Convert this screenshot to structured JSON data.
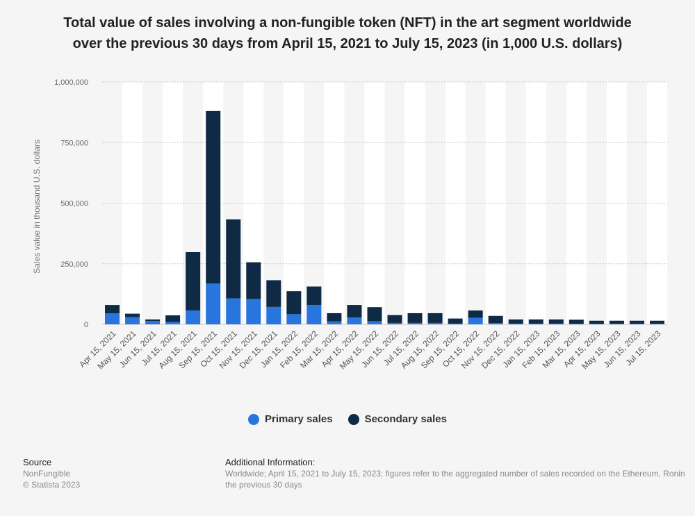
{
  "title_line1": "Total value of sales involving a non-fungible token (NFT) in the art segment worldwide",
  "title_line2": "over the previous 30 days from April 15, 2021 to July 15, 2023 (in 1,000 U.S. dollars)",
  "legend": {
    "primary_label": "Primary sales",
    "secondary_label": "Secondary sales"
  },
  "colors": {
    "primary": "#2876dd",
    "secondary": "#0f2a44",
    "band": "#ffffff",
    "grid": "#c8c8c8"
  },
  "footer": {
    "source_head": "Source",
    "source_line1": "NonFungible",
    "source_line2": "© Statista 2023",
    "info_head": "Additional Information:",
    "info_line1": "Worldwide; April 15, 2021 to July 15, 2023; figures refer to the aggregated number of sales recorded on the Ethereum, Ronin",
    "info_line2": "the previous 30 days"
  },
  "chart_data": {
    "type": "bar",
    "stacked": true,
    "title": "Total value of sales involving a non-fungible token (NFT) in the art segment worldwide over the previous 30 days from April 15, 2021 to July 15, 2023 (in 1,000 U.S. dollars)",
    "xlabel": "",
    "ylabel": "Sales value in thousand U.S. dollars",
    "ylim": [
      0,
      1000000
    ],
    "yticks": [
      0,
      250000,
      500000,
      750000,
      1000000
    ],
    "ytick_labels": [
      "0",
      "250,000",
      "500,000",
      "750,000",
      "1,000,000"
    ],
    "grid": true,
    "legend_position": "bottom",
    "categories": [
      "Apr 15, 2021",
      "May 15, 2021",
      "Jun 15, 2021",
      "Jul 15, 2021",
      "Aug 15, 2021",
      "Sep 15, 2021",
      "Oct 15, 2021",
      "Nov 15, 2021",
      "Dec 15, 2021",
      "Jan 15, 2022",
      "Feb 15, 2022",
      "Mar 15, 2022",
      "Apr 15, 2022",
      "May 15, 2022",
      "Jun 15, 2022",
      "Jul 15, 2022",
      "Aug 15, 2022",
      "Sep 15, 2022",
      "Oct 15, 2022",
      "Nov 15, 2022",
      "Dec 15, 2022",
      "Jan 15, 2023",
      "Feb 15, 2023",
      "Mar 15, 2023",
      "Apr 15, 2023",
      "May 15, 2023",
      "Jun 15, 2023",
      "Jul 15, 2023"
    ],
    "series": [
      {
        "name": "Primary sales",
        "values": [
          45000,
          30000,
          14000,
          10000,
          57000,
          168000,
          107000,
          104000,
          72000,
          42000,
          80000,
          12000,
          28000,
          13000,
          6000,
          6000,
          6000,
          3000,
          27000,
          5000,
          3000,
          3000,
          3000,
          2000,
          2000,
          2000,
          2000,
          2000
        ]
      },
      {
        "name": "Secondary sales",
        "values": [
          35000,
          14000,
          6000,
          27000,
          241000,
          712000,
          326000,
          152000,
          110000,
          95000,
          76000,
          34000,
          52000,
          58000,
          32000,
          40000,
          40000,
          21000,
          30000,
          30000,
          17000,
          17000,
          17000,
          17000,
          13000,
          13000,
          13000,
          13000
        ]
      }
    ]
  }
}
